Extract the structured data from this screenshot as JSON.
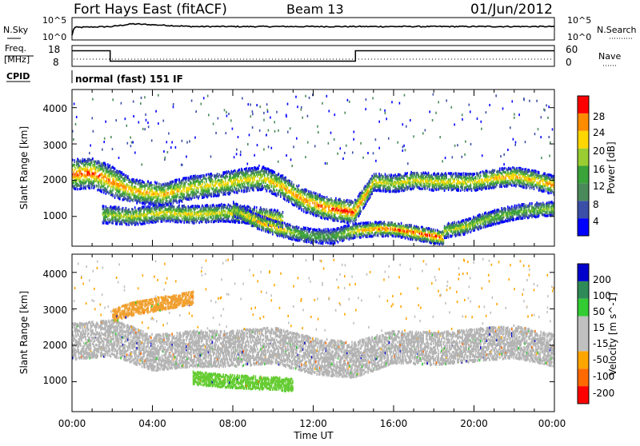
{
  "header": {
    "station": "Fort Hays East (fitACF)",
    "beam": "Beam 13",
    "date": "01/Jun/2012"
  },
  "noise_panel": {
    "left_label": "N.Sky",
    "right_label": "N.Search",
    "left_ticks": [
      "10^5",
      "10^0"
    ],
    "right_ticks": [
      "10^5",
      "10^0"
    ]
  },
  "freq_panel": {
    "left_label_line1": "Freq.",
    "left_label_line2": "[MHz]",
    "left_ticks": [
      "18",
      "8"
    ],
    "right_label": "Nave",
    "right_ticks": [
      "60",
      "0"
    ]
  },
  "cpid": {
    "label": "CPID",
    "value": "normal (fast) 151 IF"
  },
  "power_panel": {
    "ylabel": "Slant Range [km]",
    "y_ticks": [
      "4000",
      "3000",
      "2000",
      "1000"
    ],
    "colorbar_label": "Power [dB]",
    "colorbar_ticks": [
      "28",
      "24",
      "20",
      "16",
      "12",
      "8",
      "4"
    ]
  },
  "velocity_panel": {
    "ylabel": "Slant Range [km]",
    "y_ticks": [
      "4000",
      "3000",
      "2000",
      "1000"
    ],
    "colorbar_label": "Velocity [m s^-1]",
    "colorbar_ticks": [
      "200",
      "100",
      "50",
      "15",
      "-15",
      "-50",
      "-100",
      "-200"
    ]
  },
  "x_axis": {
    "label": "Time UT",
    "ticks": [
      "00:00",
      "04:00",
      "08:00",
      "12:00",
      "16:00",
      "20:00",
      "00:00"
    ]
  },
  "colors": {
    "power_scale": [
      "#0000ff",
      "#3b4fa8",
      "#4a8a5a",
      "#3aa33a",
      "#9acd32",
      "#ffd700",
      "#ff8c00",
      "#ff0000"
    ],
    "velocity_scale": [
      "#ff0000",
      "#ff6a00",
      "#ffa500",
      "#c0c0c0",
      "#c0c0c0",
      "#33cc33",
      "#2e8b57",
      "#0000cd"
    ],
    "ground_scatter": "#b4b4b4"
  },
  "chart_data": [
    {
      "type": "line",
      "title": "N.Sky / N.Search",
      "x": [
        0,
        0.1,
        2,
        3,
        4,
        6,
        8,
        10,
        12,
        14,
        16,
        18,
        20,
        22,
        24
      ],
      "series": [
        {
          "name": "N.Sky",
          "values": [
            1,
            2.8,
            3.0,
            3.6,
            3.4,
            3.0,
            3.0,
            3.0,
            3.0,
            3.0,
            3.0,
            3.0,
            3.0,
            3.0,
            3.0
          ]
        }
      ],
      "xlim": [
        0,
        24
      ],
      "ylim": [
        0,
        5
      ],
      "yscale": "log10"
    },
    {
      "type": "line",
      "title": "Freq. [MHz]",
      "x": [
        0,
        1.9,
        1.9,
        14.1,
        14.1,
        24
      ],
      "series": [
        {
          "name": "Freq.",
          "values": [
            15.5,
            15.5,
            10.5,
            10.5,
            15.5,
            15.5
          ]
        },
        {
          "name": "Nave",
          "values": [
            15,
            15,
            15,
            15,
            15,
            15
          ]
        }
      ],
      "xlim": [
        0,
        24
      ],
      "ylim": [
        8,
        18
      ]
    },
    {
      "type": "heatmap",
      "title": "Power [dB]",
      "xlabel": "Time UT",
      "ylabel": "Slant Range [km]",
      "xlim": [
        0,
        24
      ],
      "ylim": [
        180,
        4500
      ],
      "zlim": [
        0,
        30
      ],
      "bands": [
        {
          "x": [
            0.0,
            1.0,
            2.0,
            3.0,
            4.5,
            6.0,
            7.5,
            8.5,
            9.5,
            10.5,
            11.5,
            12.5,
            13.5,
            14.0,
            15.0,
            16.0,
            17.0,
            18.0,
            19.0,
            20.0,
            21.0,
            22.0,
            23.0,
            24.0
          ],
          "y": [
            2150,
            2200,
            1950,
            1700,
            1600,
            1800,
            1900,
            2000,
            2050,
            1800,
            1450,
            1250,
            1150,
            1100,
            1950,
            1900,
            2000,
            1950,
            1950,
            1950,
            2050,
            2100,
            2000,
            1850
          ],
          "width": [
            420,
            420,
            420,
            320,
            320,
            320,
            320,
            320,
            320,
            320,
            320,
            320,
            320,
            320,
            240,
            240,
            240,
            240,
            240,
            240,
            260,
            260,
            260,
            260
          ],
          "peak": [
            26,
            26,
            24,
            22,
            22,
            20,
            20,
            20,
            20,
            22,
            24,
            26,
            28,
            26,
            20,
            18,
            20,
            20,
            20,
            20,
            22,
            22,
            22,
            24
          ]
        },
        {
          "x": [
            1.5,
            3.0,
            4.5,
            6.0,
            7.5,
            8.5,
            9.5,
            10.0,
            10.5
          ],
          "y": [
            1050,
            1000,
            1100,
            1050,
            1100,
            1050,
            1000,
            950,
            900
          ],
          "width": [
            240,
            240,
            240,
            240,
            240,
            240,
            240,
            240,
            240
          ],
          "peak": [
            16,
            18,
            20,
            20,
            18,
            18,
            20,
            20,
            20
          ]
        },
        {
          "x": [
            8.0,
            9.0,
            10.0,
            11.0,
            12.0,
            13.0,
            14.0,
            15.0,
            16.0,
            17.0,
            18.0,
            18.5
          ],
          "y": [
            1200,
            900,
            700,
            550,
            450,
            450,
            600,
            650,
            650,
            550,
            450,
            400
          ],
          "width": [
            200,
            200,
            200,
            200,
            200,
            200,
            200,
            200,
            200,
            200,
            200,
            200
          ],
          "peak": [
            16,
            22,
            24,
            16,
            12,
            12,
            20,
            24,
            26,
            26,
            28,
            26
          ]
        },
        {
          "x": [
            18.5,
            19.5,
            20.5,
            21.5,
            22.5,
            23.5,
            24.0
          ],
          "y": [
            600,
            700,
            900,
            1050,
            1150,
            1200,
            1200
          ],
          "width": [
            200,
            200,
            200,
            200,
            200,
            200,
            200
          ],
          "peak": [
            18,
            18,
            16,
            14,
            14,
            16,
            16
          ]
        }
      ]
    },
    {
      "type": "heatmap",
      "title": "Velocity [m s^-1]",
      "xlabel": "Time UT",
      "ylabel": "Slant Range [km]",
      "xlim": [
        0,
        24
      ],
      "ylim": [
        180,
        4500
      ],
      "zlim": [
        -250,
        250
      ],
      "note_ground_scatter": "grey",
      "bands": [
        {
          "x": [
            0.0,
            2.0,
            4.0,
            6.0,
            8.0,
            10.0,
            12.0,
            14.0,
            16.0,
            18.0,
            20.0,
            22.0,
            24.0
          ],
          "y": [
            2100,
            2200,
            1800,
            1900,
            1900,
            2000,
            1700,
            1600,
            1950,
            1900,
            2000,
            2100,
            1850
          ],
          "width": [
            500,
            500,
            500,
            500,
            500,
            500,
            500,
            500,
            450,
            450,
            450,
            450,
            450
          ],
          "kind": "ground"
        },
        {
          "x": [
            6.0,
            8.0,
            10.0,
            11.0
          ],
          "y": [
            1100,
            1000,
            950,
            900
          ],
          "width": [
            180,
            180,
            180,
            180
          ],
          "kind": "green"
        },
        {
          "x": [
            2.0,
            3.0,
            4.0,
            5.0,
            6.0
          ],
          "y": [
            2800,
            3000,
            3100,
            3200,
            3300
          ],
          "width": [
            180,
            180,
            180,
            180,
            180
          ],
          "kind": "orange"
        }
      ]
    }
  ]
}
